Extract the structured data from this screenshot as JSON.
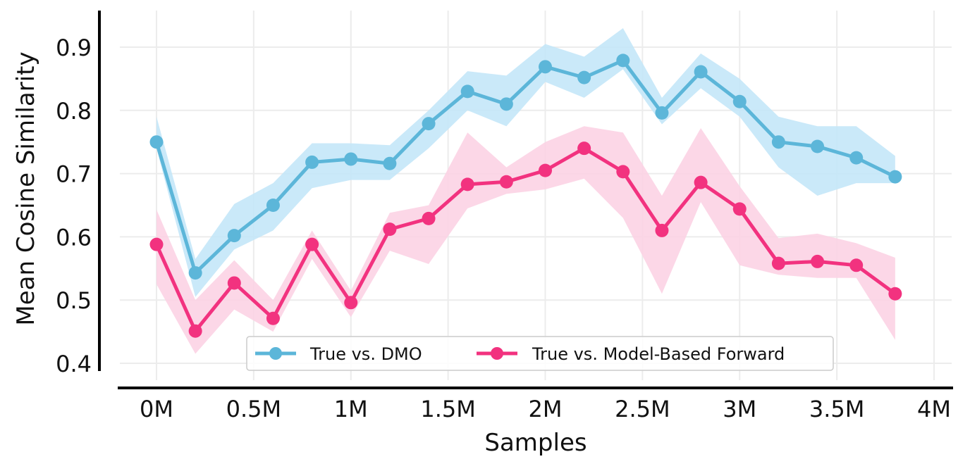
{
  "chart_data": {
    "type": "line",
    "title": "",
    "xlabel": "Samples",
    "ylabel": "Mean Cosine Similarity",
    "xlim": [
      -0.15,
      4.1
    ],
    "ylim": [
      0.39,
      0.95
    ],
    "grid": true,
    "legend_placement": "bottom-center",
    "x_ticks": [
      0,
      0.5,
      1,
      1.5,
      2,
      2.5,
      3,
      3.5,
      4
    ],
    "x_tick_labels": [
      "0M",
      "0.5M",
      "1M",
      "1.5M",
      "2M",
      "2.5M",
      "3M",
      "3.5M",
      "4M"
    ],
    "y_ticks": [
      0.4,
      0.5,
      0.6,
      0.7,
      0.8,
      0.9
    ],
    "y_tick_labels": [
      "0.4",
      "0.5",
      "0.6",
      "0.7",
      "0.8",
      "0.9"
    ],
    "x": [
      0,
      0.2,
      0.4,
      0.6,
      0.8,
      1.0,
      1.2,
      1.4,
      1.6,
      1.8,
      2.0,
      2.2,
      2.4,
      2.6,
      2.8,
      3.0,
      3.2,
      3.4,
      3.6,
      3.8
    ],
    "series": [
      {
        "name": "True vs. DMO",
        "color": "#5cb6d9",
        "band_color": "#c4e7f8",
        "values": [
          0.75,
          0.543,
          0.602,
          0.65,
          0.718,
          0.723,
          0.716,
          0.779,
          0.83,
          0.81,
          0.869,
          0.852,
          0.879,
          0.796,
          0.861,
          0.814,
          0.75,
          0.743,
          0.725,
          0.695
        ],
        "upper": [
          0.79,
          0.565,
          0.652,
          0.685,
          0.748,
          0.748,
          0.745,
          0.8,
          0.862,
          0.855,
          0.905,
          0.885,
          0.93,
          0.82,
          0.89,
          0.85,
          0.79,
          0.775,
          0.775,
          0.728
        ],
        "lower": [
          0.74,
          0.505,
          0.58,
          0.61,
          0.677,
          0.69,
          0.69,
          0.74,
          0.8,
          0.775,
          0.845,
          0.82,
          0.865,
          0.778,
          0.835,
          0.79,
          0.71,
          0.665,
          0.685,
          0.685
        ]
      },
      {
        "name": "True vs. Model-Based Forward",
        "color": "#f2327f",
        "band_color": "#fcd3e4",
        "values": [
          0.588,
          0.451,
          0.527,
          0.471,
          0.588,
          0.496,
          0.612,
          0.629,
          0.683,
          0.687,
          0.705,
          0.74,
          0.703,
          0.61,
          0.686,
          0.644,
          0.558,
          0.561,
          0.555,
          0.51
        ],
        "upper": [
          0.643,
          0.5,
          0.563,
          0.5,
          0.61,
          0.515,
          0.638,
          0.65,
          0.765,
          0.71,
          0.75,
          0.775,
          0.765,
          0.665,
          0.772,
          0.68,
          0.598,
          0.605,
          0.59,
          0.567
        ],
        "lower": [
          0.525,
          0.415,
          0.485,
          0.45,
          0.565,
          0.473,
          0.578,
          0.557,
          0.645,
          0.668,
          0.675,
          0.692,
          0.63,
          0.51,
          0.655,
          0.555,
          0.54,
          0.535,
          0.535,
          0.437
        ]
      }
    ]
  }
}
